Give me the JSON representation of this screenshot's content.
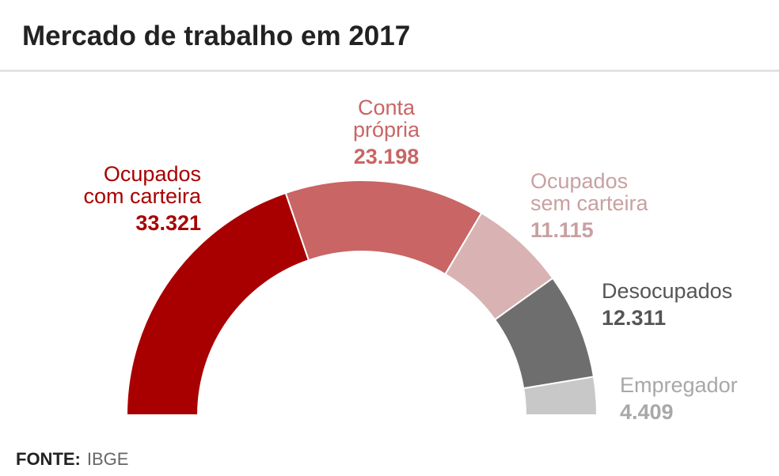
{
  "title": "Mercado de trabalho em 2017",
  "footer": {
    "label": "FONTE:",
    "source": "IBGE"
  },
  "chart_data": {
    "type": "pie",
    "variant": "half-donut",
    "categories": [
      "Ocupados com carteira",
      "Conta própria",
      "Ocupados sem carteira",
      "Desocupados",
      "Empregador"
    ],
    "values": [
      33321,
      23198,
      11115,
      12311,
      4409
    ],
    "value_labels": [
      "33.321",
      "23.198",
      "11.115",
      "12.311",
      "4.409"
    ],
    "colors": [
      "#a80000",
      "#c96565",
      "#d9b3b3",
      "#6e6e6e",
      "#c8c8c8"
    ],
    "label_colors": [
      "#a80000",
      "#c96565",
      "#c9a0a0",
      "#555555",
      "#a8a8a8"
    ],
    "label_lines": [
      [
        "Ocupados",
        "com carteira"
      ],
      [
        "Conta",
        "própria"
      ],
      [
        "Ocupados",
        "sem carteira"
      ],
      [
        "Desocupados"
      ],
      [
        "Empregador"
      ]
    ]
  }
}
